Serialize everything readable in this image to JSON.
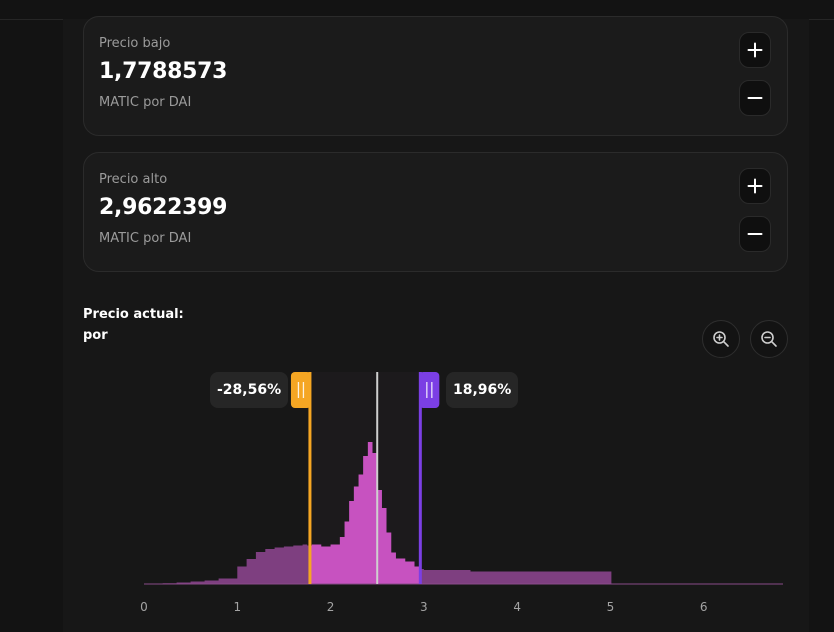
{
  "low_price": {
    "label": "Precio bajo",
    "value": "1,7788573",
    "unit": "MATIC por DAI"
  },
  "high_price": {
    "label": "Precio alto",
    "value": "2,9622399",
    "unit": "MATIC por DAI"
  },
  "current_price": {
    "label": "Precio actual:",
    "unit": "por"
  },
  "range": {
    "low_percent": "-28,56%",
    "high_percent": "18,96%"
  },
  "colors": {
    "low_handle": "#f5a623",
    "high_handle": "#7b3fe4",
    "liquidity": "#7e3f80",
    "liquidity_in_range": "#c752c0",
    "current_price_line": "#cfcfcf"
  },
  "icons": {
    "increase": "plus-icon",
    "decrease": "minus-icon",
    "zoom_in": "zoom-in-icon",
    "zoom_out": "zoom-out-icon",
    "handle": "grip-icon"
  },
  "chart_data": {
    "type": "area",
    "x_ticks": [
      "0",
      "1",
      "2",
      "3",
      "4",
      "5",
      "6"
    ],
    "xlim": [
      0,
      6.85
    ],
    "min_price": 1.7788573,
    "max_price": 2.9622399,
    "current_price": 2.5,
    "liquidity": [
      [
        0.0,
        0.5
      ],
      [
        0.2,
        0.8
      ],
      [
        0.35,
        1.5
      ],
      [
        0.5,
        2.5
      ],
      [
        0.65,
        3.5
      ],
      [
        0.8,
        5.5
      ],
      [
        1.0,
        17.5
      ],
      [
        1.1,
        25
      ],
      [
        1.2,
        32
      ],
      [
        1.3,
        35
      ],
      [
        1.4,
        36.5
      ],
      [
        1.5,
        37.5
      ],
      [
        1.6,
        38.5
      ],
      [
        1.7,
        39.5
      ],
      [
        1.75,
        38.5
      ],
      [
        1.8,
        39.5
      ],
      [
        1.9,
        37.5
      ],
      [
        2.0,
        39.5
      ],
      [
        2.1,
        47
      ],
      [
        2.15,
        62.5
      ],
      [
        2.2,
        83
      ],
      [
        2.25,
        97.5
      ],
      [
        2.3,
        109.5
      ],
      [
        2.35,
        128
      ],
      [
        2.4,
        142
      ],
      [
        2.45,
        131
      ],
      [
        2.5,
        94
      ],
      [
        2.55,
        76
      ],
      [
        2.6,
        51.5
      ],
      [
        2.65,
        31.5
      ],
      [
        2.7,
        25.5
      ],
      [
        2.8,
        22.5
      ],
      [
        2.9,
        17.5
      ],
      [
        2.95,
        15
      ],
      [
        3.0,
        14
      ],
      [
        3.5,
        12.5
      ],
      [
        4.5,
        12.5
      ],
      [
        5.0,
        12.5
      ],
      [
        5.01,
        0.5
      ],
      [
        6.85,
        0.5
      ]
    ]
  }
}
